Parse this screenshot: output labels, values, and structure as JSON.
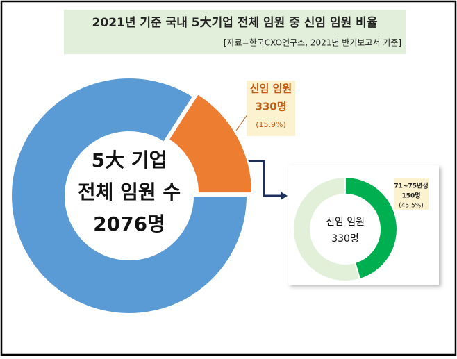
{
  "title": "2021년 기준 국내 5大기업 전체 임원 중 신임 임원 비율",
  "subtitle": "[자료=한국CXO연구소, 2021년 반기보고서 기준]",
  "chart_data": [
    {
      "type": "donut",
      "categories": [
        null,
        "신임 임원"
      ],
      "values": [
        1746,
        330
      ],
      "value_labels": [
        null,
        "330명"
      ],
      "percent_labels": [
        null,
        "(15.9%)"
      ],
      "colors": [
        "#5b9bd5",
        "#ed7d31"
      ],
      "center_text": [
        "5大 기업",
        "전체 임원 수",
        "2076명"
      ]
    },
    {
      "type": "donut",
      "categories": [
        "71~75년생",
        null
      ],
      "values": [
        150,
        180
      ],
      "value_labels": [
        "150명",
        null
      ],
      "percent_labels": [
        "(45.5%)",
        null
      ],
      "colors": [
        "#00b050",
        "#e2f0d9"
      ],
      "center_text": [
        "신임 임원",
        "330명"
      ]
    }
  ]
}
